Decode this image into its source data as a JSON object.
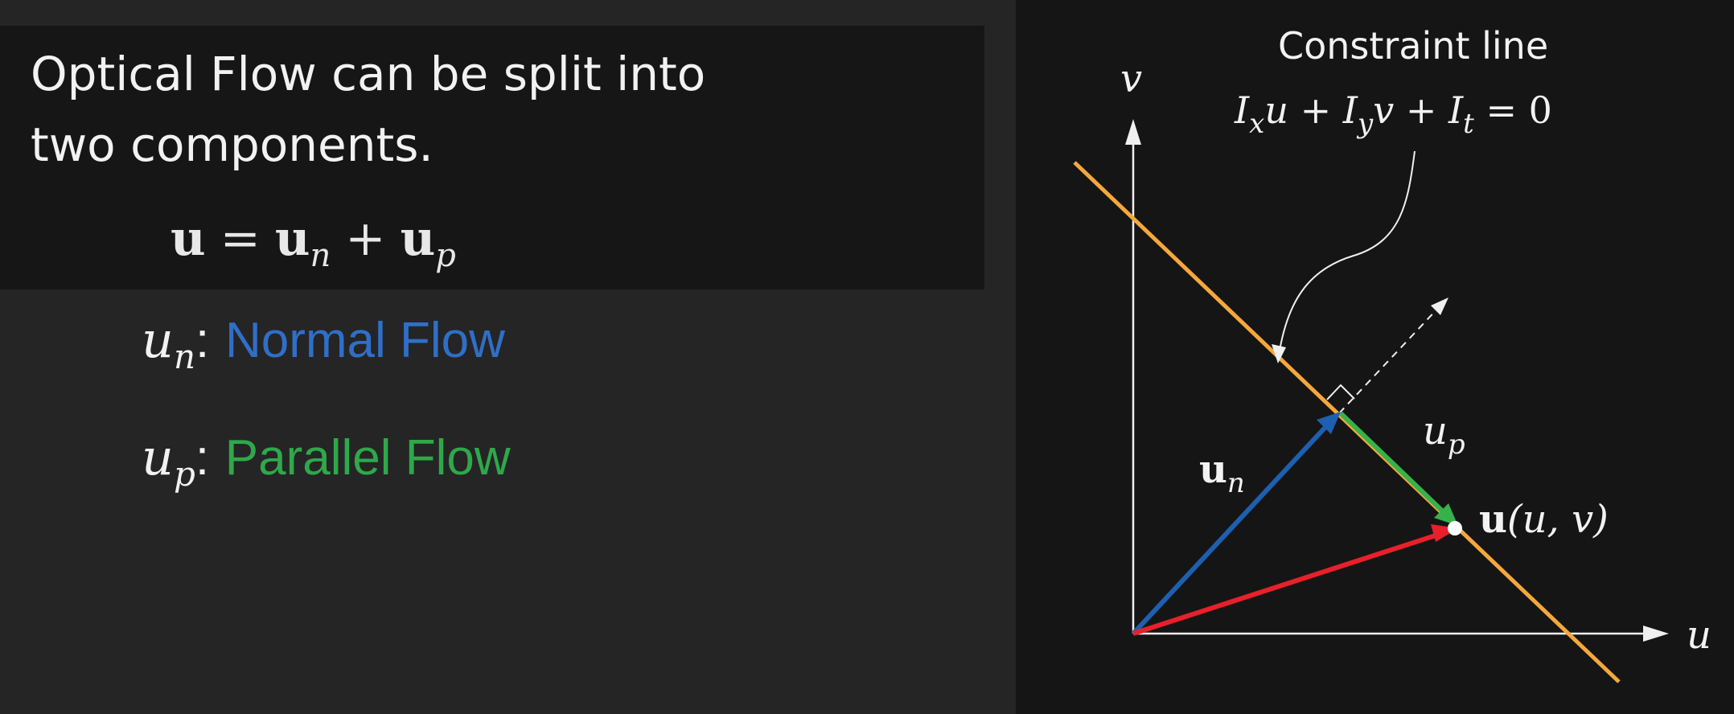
{
  "intro": {
    "line1": "Optical Flow can be split into",
    "line2": "two components."
  },
  "equation": {
    "lhs": "u",
    "equals": "=",
    "term1": "u",
    "term1_sub": "n",
    "plus": "+",
    "term2": "u",
    "term2_sub": "p"
  },
  "definitions": [
    {
      "symbol": "u",
      "sub": "n",
      "colon": ":",
      "label": "Normal Flow",
      "color": "#2f6fc7"
    },
    {
      "symbol": "u",
      "sub": "p",
      "colon": ":",
      "label": "Parallel Flow",
      "color": "#2fa84a"
    }
  ],
  "diagram": {
    "title": "Constraint line",
    "equation": {
      "Ix": "I",
      "x_sub": "x",
      "u1": "u",
      "plus1": "+",
      "Iy": "I",
      "y_sub": "y",
      "v1": "v",
      "plus2": "+",
      "It": "I",
      "t_sub": "t",
      "eq0": "= 0"
    },
    "axis_v": "v",
    "axis_u": "u",
    "un": {
      "main": "u",
      "sub": "n"
    },
    "up": {
      "main": "u",
      "sub": "p"
    },
    "point": {
      "main": "u",
      "args": "(u, v)"
    },
    "colors": {
      "constraint_line": "#f5a83a",
      "normal": "#1d5fb0",
      "parallel": "#36b24a",
      "flow": "#e8202a",
      "axes": "#f0f0f0"
    }
  }
}
